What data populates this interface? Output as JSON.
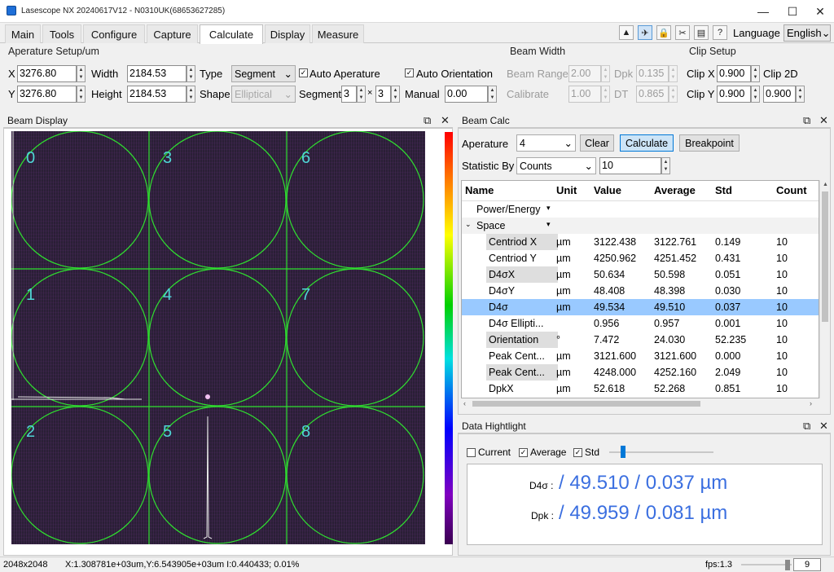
{
  "window": {
    "title": "Lasescope NX 20240617V12 - N0310UK(68653627285)",
    "minimize": "—",
    "maximize": "☐",
    "close": "✕"
  },
  "menu": {
    "tabs": [
      "Main",
      "Tools",
      "Configure",
      "Capture",
      "Calculate",
      "Display",
      "Measure"
    ],
    "active": "Calculate"
  },
  "toolbar": {
    "icons": [
      "triangle-up-icon",
      "pin-icon",
      "lock-icon",
      "scissors-icon",
      "save-icon",
      "help-icon"
    ],
    "language_label": "Language",
    "language_value": "English"
  },
  "aperture_setup": {
    "title": "Aperature Setup/um",
    "x_label": "X",
    "x_value": "3276.80",
    "y_label": "Y",
    "y_value": "3276.80",
    "width_label": "Width",
    "width_value": "2184.53",
    "height_label": "Height",
    "height_value": "2184.53",
    "type_label": "Type",
    "type_value": "Segment",
    "shape_label": "Shape",
    "shape_value": "Elliptical",
    "auto_aperture": "Auto Aperature",
    "auto_orientation": "Auto Orientation",
    "segment_label": "Segment",
    "segment_a": "3",
    "segment_x": "×",
    "segment_b": "3",
    "manual_label": "Manual",
    "manual_value": "0.00"
  },
  "beam_width": {
    "title": "Beam Width",
    "beam_range_label": "Beam Range",
    "beam_range_value": "2.00",
    "dpk_label": "Dpk",
    "dpk_value": "0.135",
    "calibrate_label": "Calibrate",
    "calibrate_value": "1.00",
    "dt_label": "DT",
    "dt_value": "0.865"
  },
  "clip_setup": {
    "title": "Clip Setup",
    "clipx_label": "Clip X",
    "clipx_value": "0.900",
    "clip2d_label": "Clip 2D",
    "clipy_label": "Clip Y",
    "clipy_value": "0.900",
    "clip2d_value": "0.900"
  },
  "beam_display": {
    "title": "Beam Display",
    "cells": [
      "0",
      "3",
      "6",
      "1",
      "4",
      "7",
      "2",
      "5",
      "8"
    ]
  },
  "beam_calc": {
    "title": "Beam Calc",
    "aperture_label": "Aperature",
    "aperture_value": "4",
    "clear": "Clear",
    "calculate": "Calculate",
    "breakpoint": "Breakpoint",
    "statistic_label": "Statistic By",
    "statistic_value": "Counts",
    "statistic_count": "10",
    "columns": [
      "Name",
      "Unit",
      "Value",
      "Average",
      "Std",
      "Count"
    ],
    "group_power": "Power/Energy",
    "group_space": "Space",
    "rows": [
      {
        "name": "Centriod X",
        "unit": "µm",
        "value": "3122.438",
        "average": "3122.761",
        "std": "0.149",
        "count": "10"
      },
      {
        "name": "Centriod Y",
        "unit": "µm",
        "value": "4250.962",
        "average": "4251.452",
        "std": "0.431",
        "count": "10"
      },
      {
        "name": "D4σX",
        "unit": "µm",
        "value": "50.634",
        "average": "50.598",
        "std": "0.051",
        "count": "10"
      },
      {
        "name": "D4σY",
        "unit": "µm",
        "value": "48.408",
        "average": "48.398",
        "std": "0.030",
        "count": "10"
      },
      {
        "name": "D4σ",
        "unit": "µm",
        "value": "49.534",
        "average": "49.510",
        "std": "0.037",
        "count": "10"
      },
      {
        "name": "D4σ Ellipti...",
        "unit": "",
        "value": "0.956",
        "average": "0.957",
        "std": "0.001",
        "count": "10"
      },
      {
        "name": "Orientation",
        "unit": "°",
        "value": "7.472",
        "average": "24.030",
        "std": "52.235",
        "count": "10"
      },
      {
        "name": "Peak Cent...",
        "unit": "µm",
        "value": "3121.600",
        "average": "3121.600",
        "std": "0.000",
        "count": "10"
      },
      {
        "name": "Peak Cent...",
        "unit": "µm",
        "value": "4248.000",
        "average": "4252.160",
        "std": "2.049",
        "count": "10"
      },
      {
        "name": "DpkX",
        "unit": "µm",
        "value": "52.618",
        "average": "52.268",
        "std": "0.851",
        "count": "10"
      }
    ]
  },
  "data_highlight": {
    "title": "Data Hightlight",
    "current": "Current",
    "average": "Average",
    "std": "Std",
    "line1_label": "D4σ :",
    "line1_value": "/ 49.510 / 0.037 µm",
    "line2_label": "Dpk :",
    "line2_value": "/ 49.959 / 0.081 µm"
  },
  "status": {
    "resolution": "2048x2048",
    "readout": "X:1.308781e+03um,Y:6.543905e+03um I:0.440433; 0.01%",
    "fps": "fps:1.3",
    "fps_value": "9"
  }
}
